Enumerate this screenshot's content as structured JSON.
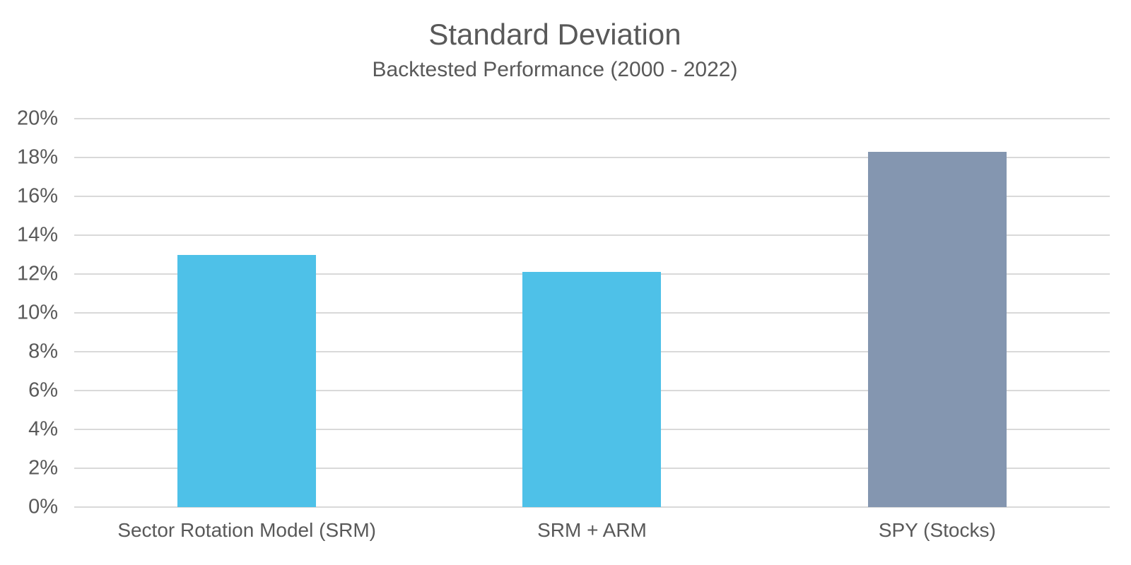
{
  "chart_data": {
    "type": "bar",
    "title": "Standard Deviation",
    "subtitle": "Backtested Performance (2000 - 2022)",
    "categories": [
      "Sector Rotation Model (SRM)",
      "SRM + ARM",
      "SPY (Stocks)"
    ],
    "values": [
      13.0,
      12.1,
      18.3
    ],
    "value_unit": "%",
    "bar_colors": [
      "#4EC1E8",
      "#4EC1E8",
      "#8496B0"
    ],
    "ylim": [
      0,
      20
    ],
    "ytick_step": 2,
    "ytick_labels": [
      "0%",
      "2%",
      "4%",
      "6%",
      "8%",
      "10%",
      "12%",
      "14%",
      "16%",
      "18%",
      "20%"
    ],
    "grid": true,
    "legend_position": "none",
    "colors": {
      "text": "#595959",
      "gridline": "#D9D9D9",
      "background": "#FFFFFF"
    }
  }
}
